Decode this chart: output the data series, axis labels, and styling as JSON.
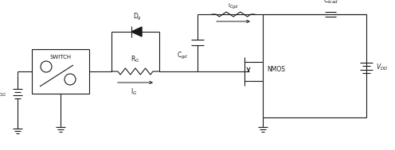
{
  "bg_color": "#ffffff",
  "line_color": "#1a1a1a",
  "line_width": 0.8,
  "fig_width": 4.96,
  "fig_height": 1.89,
  "dpi": 100,
  "labels": {
    "VGG": "V$_{GG}$",
    "SWITCH": "SWITCH",
    "Dg": "D$_g$",
    "RG": "R$_G$",
    "IG": "I$_G$",
    "Cgd_label": "C$_{gd}$",
    "ICgd": "I$_{Cgd}$",
    "NMOS": "NMOS",
    "Cload": "C$_{load}$",
    "VDD": "V$_{DD}$"
  }
}
